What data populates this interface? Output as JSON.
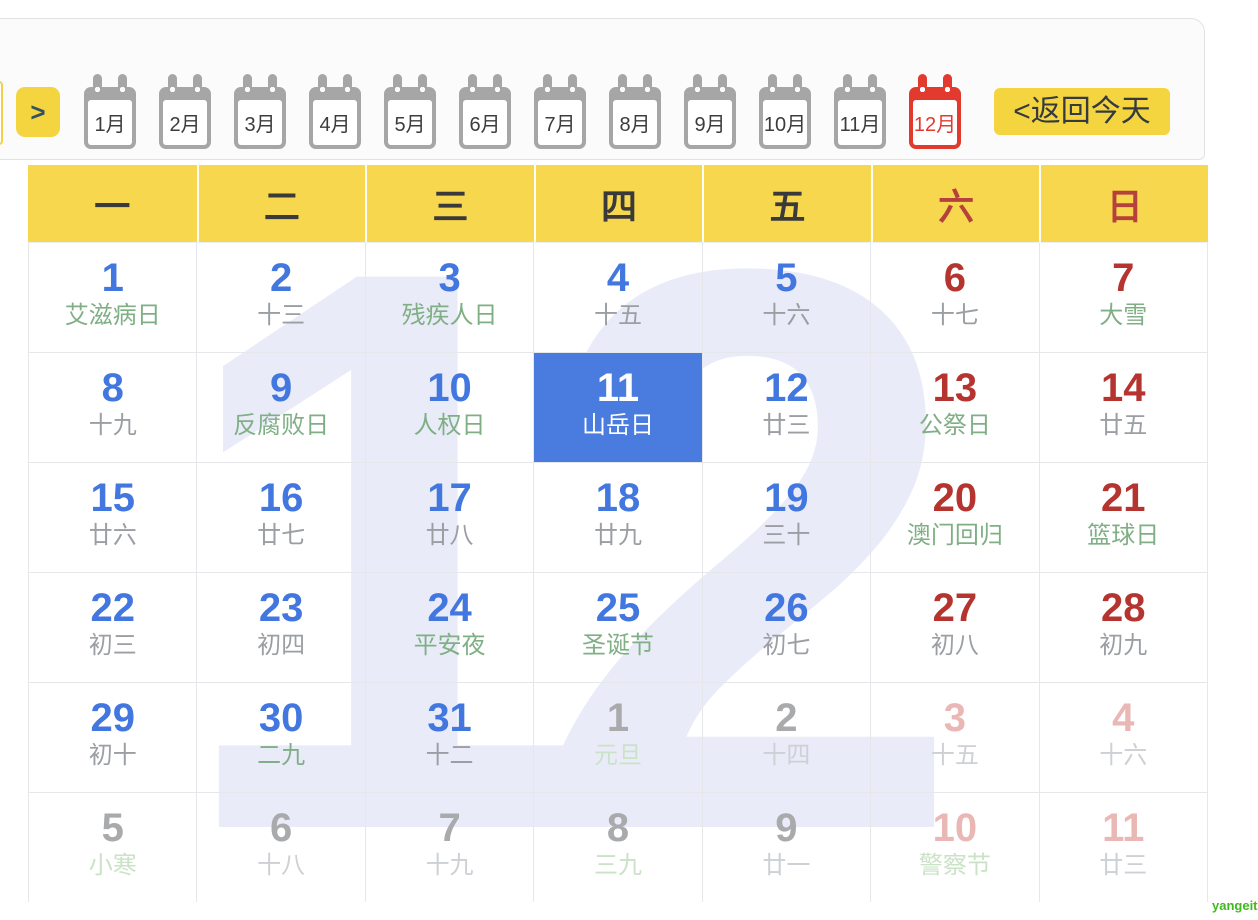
{
  "toolbar": {
    "next_button": ">",
    "today_button": "<返回今天",
    "months": [
      {
        "label": "1月",
        "active": false
      },
      {
        "label": "2月",
        "active": false
      },
      {
        "label": "3月",
        "active": false
      },
      {
        "label": "4月",
        "active": false
      },
      {
        "label": "5月",
        "active": false
      },
      {
        "label": "6月",
        "active": false
      },
      {
        "label": "7月",
        "active": false
      },
      {
        "label": "8月",
        "active": false
      },
      {
        "label": "9月",
        "active": false
      },
      {
        "label": "10月",
        "active": false
      },
      {
        "label": "11月",
        "active": false
      },
      {
        "label": "12月",
        "active": true
      }
    ]
  },
  "weekdays": [
    {
      "label": "一",
      "weekend": false
    },
    {
      "label": "二",
      "weekend": false
    },
    {
      "label": "三",
      "weekend": false
    },
    {
      "label": "四",
      "weekend": false
    },
    {
      "label": "五",
      "weekend": false
    },
    {
      "label": "六",
      "weekend": true
    },
    {
      "label": "日",
      "weekend": true
    }
  ],
  "calendar": {
    "watermark": "12",
    "selected_day": "11",
    "colors": {
      "accent_yellow": "#f6d74d",
      "weekday_blue": "#4377e0",
      "weekend_red": "#b5342f",
      "selected_blue": "#4a7ce0",
      "holiday_green": "#80af86",
      "lunar_gray": "#9b9ea3",
      "watermark_lavender": "#e9ecf8"
    },
    "rows": [
      [
        {
          "day": "1",
          "label": "艾滋病日",
          "label_kind": "holiday",
          "weekend": false,
          "other_month": false,
          "selected": false
        },
        {
          "day": "2",
          "label": "十三",
          "label_kind": "lunar",
          "weekend": false,
          "other_month": false,
          "selected": false
        },
        {
          "day": "3",
          "label": "残疾人日",
          "label_kind": "holiday",
          "weekend": false,
          "other_month": false,
          "selected": false
        },
        {
          "day": "4",
          "label": "十五",
          "label_kind": "lunar",
          "weekend": false,
          "other_month": false,
          "selected": false
        },
        {
          "day": "5",
          "label": "十六",
          "label_kind": "lunar",
          "weekend": false,
          "other_month": false,
          "selected": false
        },
        {
          "day": "6",
          "label": "十七",
          "label_kind": "lunar",
          "weekend": true,
          "other_month": false,
          "selected": false
        },
        {
          "day": "7",
          "label": "大雪",
          "label_kind": "holiday",
          "weekend": true,
          "other_month": false,
          "selected": false
        }
      ],
      [
        {
          "day": "8",
          "label": "十九",
          "label_kind": "lunar",
          "weekend": false,
          "other_month": false,
          "selected": false
        },
        {
          "day": "9",
          "label": "反腐败日",
          "label_kind": "holiday",
          "weekend": false,
          "other_month": false,
          "selected": false
        },
        {
          "day": "10",
          "label": "人权日",
          "label_kind": "holiday",
          "weekend": false,
          "other_month": false,
          "selected": false
        },
        {
          "day": "11",
          "label": "山岳日",
          "label_kind": "holiday",
          "weekend": false,
          "other_month": false,
          "selected": true
        },
        {
          "day": "12",
          "label": "廿三",
          "label_kind": "lunar",
          "weekend": false,
          "other_month": false,
          "selected": false
        },
        {
          "day": "13",
          "label": "公祭日",
          "label_kind": "holiday",
          "weekend": true,
          "other_month": false,
          "selected": false
        },
        {
          "day": "14",
          "label": "廿五",
          "label_kind": "lunar",
          "weekend": true,
          "other_month": false,
          "selected": false
        }
      ],
      [
        {
          "day": "15",
          "label": "廿六",
          "label_kind": "lunar",
          "weekend": false,
          "other_month": false,
          "selected": false
        },
        {
          "day": "16",
          "label": "廿七",
          "label_kind": "lunar",
          "weekend": false,
          "other_month": false,
          "selected": false
        },
        {
          "day": "17",
          "label": "廿八",
          "label_kind": "lunar",
          "weekend": false,
          "other_month": false,
          "selected": false
        },
        {
          "day": "18",
          "label": "廿九",
          "label_kind": "lunar",
          "weekend": false,
          "other_month": false,
          "selected": false
        },
        {
          "day": "19",
          "label": "三十",
          "label_kind": "lunar",
          "weekend": false,
          "other_month": false,
          "selected": false
        },
        {
          "day": "20",
          "label": "澳门回归",
          "label_kind": "holiday",
          "weekend": true,
          "other_month": false,
          "selected": false
        },
        {
          "day": "21",
          "label": "篮球日",
          "label_kind": "holiday",
          "weekend": true,
          "other_month": false,
          "selected": false
        }
      ],
      [
        {
          "day": "22",
          "label": "初三",
          "label_kind": "lunar",
          "weekend": false,
          "other_month": false,
          "selected": false
        },
        {
          "day": "23",
          "label": "初四",
          "label_kind": "lunar",
          "weekend": false,
          "other_month": false,
          "selected": false
        },
        {
          "day": "24",
          "label": "平安夜",
          "label_kind": "holiday",
          "weekend": false,
          "other_month": false,
          "selected": false
        },
        {
          "day": "25",
          "label": "圣诞节",
          "label_kind": "holiday",
          "weekend": false,
          "other_month": false,
          "selected": false
        },
        {
          "day": "26",
          "label": "初七",
          "label_kind": "lunar",
          "weekend": false,
          "other_month": false,
          "selected": false
        },
        {
          "day": "27",
          "label": "初八",
          "label_kind": "lunar",
          "weekend": true,
          "other_month": false,
          "selected": false
        },
        {
          "day": "28",
          "label": "初九",
          "label_kind": "lunar",
          "weekend": true,
          "other_month": false,
          "selected": false
        }
      ],
      [
        {
          "day": "29",
          "label": "初十",
          "label_kind": "lunar",
          "weekend": false,
          "other_month": false,
          "selected": false
        },
        {
          "day": "30",
          "label": "二九",
          "label_kind": "holiday",
          "weekend": false,
          "other_month": false,
          "selected": false
        },
        {
          "day": "31",
          "label": "十二",
          "label_kind": "lunar",
          "weekend": false,
          "other_month": false,
          "selected": false
        },
        {
          "day": "1",
          "label": "元旦",
          "label_kind": "holiday",
          "weekend": false,
          "other_month": true,
          "selected": false
        },
        {
          "day": "2",
          "label": "十四",
          "label_kind": "lunar",
          "weekend": false,
          "other_month": true,
          "selected": false
        },
        {
          "day": "3",
          "label": "十五",
          "label_kind": "lunar",
          "weekend": true,
          "other_month": true,
          "selected": false
        },
        {
          "day": "4",
          "label": "十六",
          "label_kind": "lunar",
          "weekend": true,
          "other_month": true,
          "selected": false
        }
      ],
      [
        {
          "day": "5",
          "label": "小寒",
          "label_kind": "holiday",
          "weekend": false,
          "other_month": true,
          "selected": false
        },
        {
          "day": "6",
          "label": "十八",
          "label_kind": "lunar",
          "weekend": false,
          "other_month": true,
          "selected": false
        },
        {
          "day": "7",
          "label": "十九",
          "label_kind": "lunar",
          "weekend": false,
          "other_month": true,
          "selected": false
        },
        {
          "day": "8",
          "label": "三九",
          "label_kind": "holiday",
          "weekend": false,
          "other_month": true,
          "selected": false
        },
        {
          "day": "9",
          "label": "廿一",
          "label_kind": "lunar",
          "weekend": false,
          "other_month": true,
          "selected": false
        },
        {
          "day": "10",
          "label": "警察节",
          "label_kind": "holiday",
          "weekend": true,
          "other_month": true,
          "selected": false
        },
        {
          "day": "11",
          "label": "廿三",
          "label_kind": "lunar",
          "weekend": true,
          "other_month": true,
          "selected": false
        }
      ]
    ]
  },
  "footer": {
    "brand": "yangeit"
  }
}
